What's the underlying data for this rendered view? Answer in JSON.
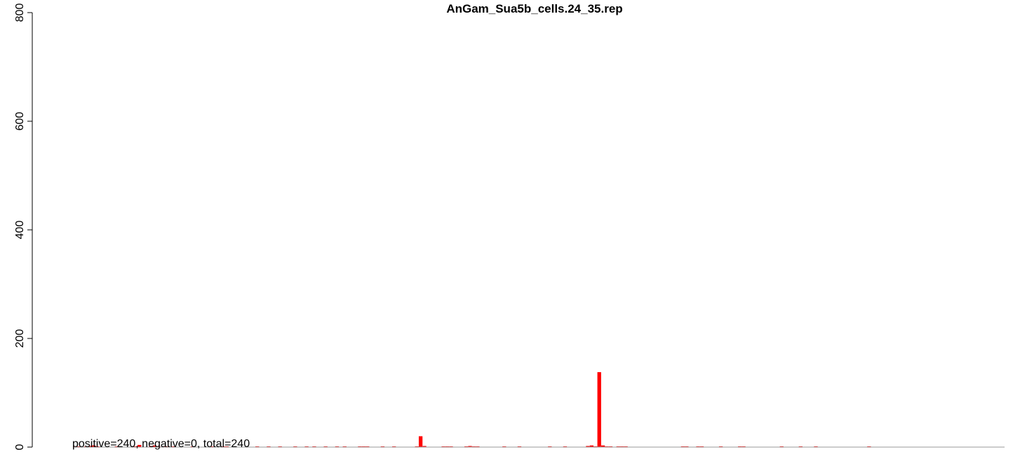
{
  "chart_data": {
    "type": "bar",
    "title": "AnGam_Sua5b_cells.24_35.rep",
    "xlabel": "",
    "ylabel": "",
    "ylim": [
      0,
      800
    ],
    "yticks": [
      0,
      200,
      400,
      600,
      800
    ],
    "bar_color": "#ff0000",
    "annotation": "positive=240, negative=0, total=240",
    "x": [
      0,
      1,
      2,
      3,
      4,
      5,
      6,
      7,
      8,
      9,
      10,
      11,
      12,
      13,
      14,
      15,
      16,
      17,
      18,
      19,
      20,
      21,
      22,
      23,
      24,
      25,
      26,
      27,
      28,
      29,
      30,
      31,
      32,
      33,
      34,
      35,
      36,
      37,
      38,
      39,
      40,
      41,
      42,
      43,
      44,
      45,
      46,
      47,
      48,
      49,
      50,
      51,
      52,
      53,
      54,
      55,
      56,
      57,
      58,
      59,
      60,
      61,
      62,
      63,
      64,
      65,
      66,
      67,
      68,
      69,
      70,
      71,
      72,
      73,
      74,
      75,
      76,
      77,
      78,
      79,
      80,
      81,
      82,
      83,
      84,
      85,
      86,
      87,
      88,
      89,
      90,
      91,
      92,
      93,
      94,
      95,
      96,
      97,
      98,
      99,
      100,
      101,
      102,
      103,
      104,
      105,
      106,
      107,
      108,
      109,
      110,
      111,
      112,
      113,
      114,
      115,
      116,
      117,
      118,
      119,
      120,
      121,
      122,
      123,
      124,
      125,
      126,
      127,
      128,
      129,
      130,
      131,
      132,
      133,
      134,
      135,
      136,
      137,
      138,
      139,
      140,
      141,
      142,
      143,
      144,
      145,
      146,
      147,
      148,
      149,
      150,
      151,
      152,
      153,
      154,
      155,
      156,
      157,
      158,
      159,
      160,
      161,
      162,
      163,
      164,
      165,
      166,
      167,
      168,
      169,
      170,
      171,
      172,
      173,
      174,
      175,
      176,
      177,
      178,
      179,
      180,
      181,
      182,
      183,
      184,
      185,
      186,
      187,
      188,
      189,
      190,
      191,
      192,
      193,
      194,
      195,
      196,
      197,
      198,
      199,
      200,
      201,
      202,
      203,
      204,
      205,
      206,
      207,
      208,
      209,
      210,
      211,
      212,
      213,
      214,
      215,
      216,
      217,
      218,
      219,
      220,
      221,
      222
    ],
    "values": [
      1,
      1,
      0,
      1,
      2,
      3,
      1,
      0,
      0,
      0,
      0,
      1,
      0,
      0,
      0,
      0,
      1,
      4,
      0,
      0,
      2,
      3,
      1,
      0,
      1,
      0,
      1,
      0,
      0,
      0,
      0,
      1,
      0,
      0,
      0,
      0,
      1,
      0,
      0,
      1,
      1,
      0,
      1,
      0,
      0,
      0,
      0,
      0,
      1,
      0,
      0,
      1,
      0,
      0,
      1,
      0,
      0,
      0,
      1,
      0,
      0,
      1,
      0,
      1,
      0,
      0,
      1,
      0,
      0,
      1,
      0,
      1,
      0,
      0,
      0,
      1,
      1,
      1,
      0,
      0,
      0,
      1,
      0,
      0,
      1,
      0,
      0,
      0,
      0,
      0,
      1,
      20,
      2,
      0,
      0,
      0,
      0,
      1,
      1,
      1,
      0,
      0,
      0,
      1,
      2,
      1,
      1,
      0,
      0,
      0,
      0,
      0,
      0,
      1,
      0,
      0,
      0,
      1,
      0,
      0,
      0,
      0,
      0,
      0,
      0,
      1,
      0,
      0,
      0,
      1,
      0,
      0,
      0,
      0,
      0,
      2,
      3,
      1,
      138,
      3,
      1,
      1,
      0,
      1,
      1,
      1,
      0,
      0,
      0,
      0,
      0,
      0,
      0,
      0,
      0,
      0,
      0,
      0,
      0,
      0,
      1,
      1,
      0,
      0,
      1,
      1,
      0,
      0,
      0,
      0,
      1,
      0,
      0,
      0,
      0,
      1,
      1,
      0,
      0,
      0,
      0,
      0,
      0,
      0,
      0,
      0,
      1,
      0,
      0,
      0,
      0,
      1,
      0,
      0,
      0,
      1,
      0,
      0,
      0,
      0,
      0,
      0,
      0,
      0,
      0,
      0,
      0,
      0,
      0,
      1,
      0,
      0,
      0,
      0,
      0,
      0,
      0,
      0,
      0,
      0,
      0,
      0,
      0
    ]
  }
}
